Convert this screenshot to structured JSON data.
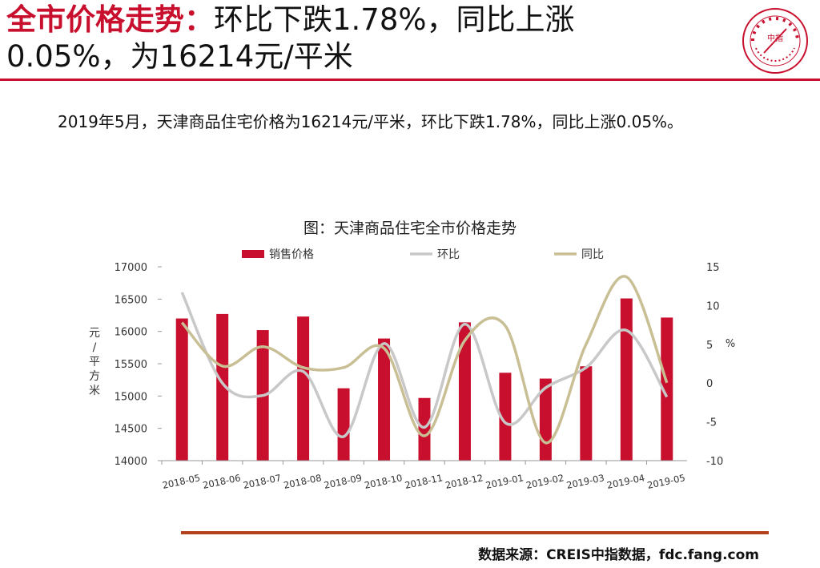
{
  "header": {
    "title_red": "全市价格走势：",
    "title_line1_rest": "环比下跌1.78%，同比上涨",
    "title_line2": "0.05%，为16214元/平米"
  },
  "logo": {
    "name": "china-index-academy-seal",
    "center_text": "中指",
    "ring_text": "中国指数研究院 CHINA INDEX ACADEMY"
  },
  "summary": "2019年5月，天津商品住宅价格为16214元/平米，环比下跌1.78%，同比上涨0.05%。",
  "footer": {
    "source": "数据来源：CREIS中指数据，fdc.fang.com"
  },
  "chart_data": {
    "type": "bar",
    "title": "图：天津商品住宅全市价格走势",
    "categories": [
      "2018-05",
      "2018-06",
      "2018-07",
      "2018-08",
      "2018-09",
      "2018-10",
      "2018-11",
      "2018-12",
      "2019-01",
      "2019-02",
      "2019-03",
      "2019-04",
      "2019-05"
    ],
    "series": [
      {
        "name": "销售价格",
        "type": "bar",
        "axis": "left",
        "color": "#c8102e",
        "values": [
          16200,
          16270,
          16020,
          16230,
          15120,
          15890,
          14970,
          16140,
          15360,
          15270,
          15460,
          16510,
          16214
        ]
      },
      {
        "name": "环比",
        "type": "smooth-line",
        "axis": "right",
        "color": "#c8c8c8",
        "values": [
          11.7,
          0.0,
          -1.6,
          1.5,
          -6.9,
          5.1,
          -5.7,
          7.6,
          -5.1,
          -0.6,
          2.0,
          6.8,
          -1.78
        ]
      },
      {
        "name": "同比",
        "type": "smooth-line",
        "axis": "right",
        "color": "#c9bf95",
        "values": [
          7.8,
          2.2,
          4.7,
          2.0,
          2.0,
          4.5,
          -6.8,
          5.5,
          7.4,
          -7.7,
          5.0,
          13.7,
          0.05
        ]
      }
    ],
    "ylabel": "元/平方米",
    "ylim": [
      14000,
      17000
    ],
    "yticks": [
      "14000",
      "14500",
      "15000",
      "15500",
      "16000",
      "16500",
      "17000"
    ],
    "y2label": "%",
    "y2lim": [
      -10,
      15
    ],
    "y2ticks": [
      "-10",
      "-5",
      "0",
      "5",
      "10",
      "15"
    ],
    "legend_position": "top",
    "grid": false
  }
}
